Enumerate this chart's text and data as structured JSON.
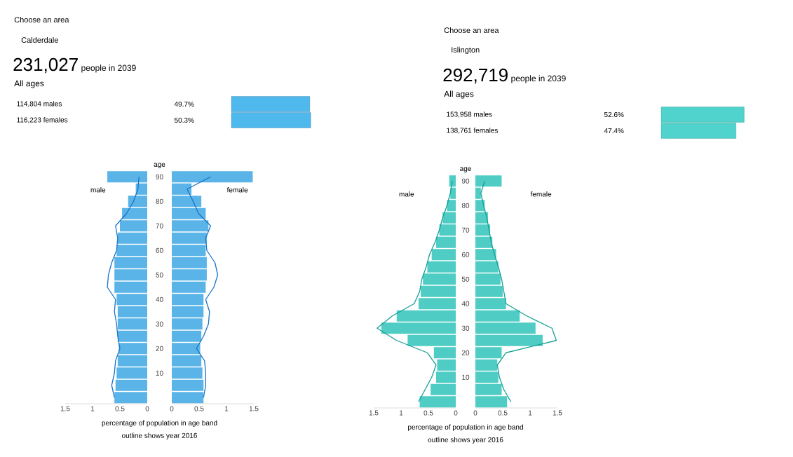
{
  "chart_data": [
    {
      "type": "bar",
      "orientation": "horizontal",
      "annotations": [
        "Choose an area",
        "Calderdale",
        "231,027",
        "people in 2039",
        "All ages"
      ],
      "categories": [
        "114,804 males",
        "116,223 females"
      ],
      "values": [
        49.7,
        50.3
      ],
      "value_labels": [
        "49.7%",
        "50.3%"
      ],
      "color": "#4fb8ec"
    },
    {
      "type": "bar",
      "orientation": "horizontal",
      "title": "male",
      "ylabel": "age",
      "xlabel": "percentage of population in age band",
      "annotations": [
        "outline shows year 2016"
      ],
      "x": [
        0,
        5,
        10,
        15,
        20,
        25,
        30,
        35,
        40,
        45,
        50,
        55,
        60,
        65,
        70,
        75,
        80,
        85,
        90
      ],
      "xlim": [
        1.5,
        0
      ],
      "xticks": [
        0,
        0.5,
        1,
        1.5
      ],
      "ylim": [
        -2.5,
        92.5
      ],
      "yticks": [
        10,
        20,
        30,
        40,
        50,
        60,
        70,
        80,
        90
      ],
      "series": [
        {
          "type": "bar",
          "color": "#5ab4e8",
          "values": [
            0.6,
            0.58,
            0.56,
            0.54,
            0.52,
            0.54,
            0.54,
            0.54,
            0.56,
            0.6,
            0.6,
            0.6,
            0.56,
            0.54,
            0.5,
            0.46,
            0.35,
            0.21,
            0.73
          ]
        },
        {
          "type": "line",
          "color": "#1a73c8",
          "values": [
            0.6,
            0.65,
            0.6,
            0.58,
            0.5,
            0.54,
            0.56,
            0.6,
            0.58,
            0.73,
            0.71,
            0.65,
            0.56,
            0.54,
            0.58,
            0.38,
            0.25,
            0.17,
            0.15
          ]
        }
      ]
    },
    {
      "type": "bar",
      "orientation": "horizontal",
      "title": "female",
      "tick_labels": "x",
      "x": [
        0,
        5,
        10,
        15,
        20,
        25,
        30,
        35,
        40,
        45,
        50,
        55,
        60,
        65,
        70,
        75,
        80,
        85,
        90
      ],
      "xlim": [
        0,
        1.5
      ],
      "xticks": [
        0,
        0.5,
        1,
        1.5
      ],
      "ylim": [
        -2.5,
        92.5
      ],
      "yticks": [
        10,
        20,
        30,
        40,
        50,
        60,
        70,
        80,
        90
      ],
      "series": [
        {
          "type": "bar",
          "color": "#5ab4e8",
          "values": [
            0.58,
            0.58,
            0.56,
            0.54,
            0.52,
            0.54,
            0.56,
            0.58,
            0.58,
            0.62,
            0.64,
            0.64,
            0.62,
            0.64,
            0.67,
            0.62,
            0.54,
            0.36,
            1.48
          ]
        },
        {
          "type": "line",
          "color": "#1a73c8",
          "values": [
            0.58,
            0.62,
            0.62,
            0.6,
            0.45,
            0.58,
            0.67,
            0.69,
            0.62,
            0.77,
            0.84,
            0.79,
            0.64,
            0.62,
            0.71,
            0.49,
            0.39,
            0.28,
            0.71
          ]
        }
      ]
    },
    {
      "type": "bar",
      "orientation": "horizontal",
      "annotations": [
        "Choose an area",
        "Islington",
        "292,719",
        "people in 2039",
        "All ages"
      ],
      "categories": [
        "153,958 males",
        "138,761 females"
      ],
      "values": [
        52.6,
        47.4
      ],
      "value_labels": [
        "52.6%",
        "47.4%"
      ],
      "color": "#4fd3cc"
    },
    {
      "type": "bar",
      "orientation": "horizontal",
      "title": "male",
      "ylabel": "age",
      "xlabel": "percentage of population in age band",
      "annotations": [
        "outline shows year 2016"
      ],
      "x": [
        0,
        5,
        10,
        15,
        20,
        25,
        30,
        35,
        40,
        45,
        50,
        55,
        60,
        65,
        70,
        75,
        80,
        85,
        90
      ],
      "xlim": [
        1.5,
        0
      ],
      "xticks": [
        0,
        0.5,
        1,
        1.5
      ],
      "ylim": [
        -2.5,
        92.5
      ],
      "yticks": [
        10,
        20,
        30,
        40,
        50,
        60,
        70,
        80,
        90
      ],
      "series": [
        {
          "type": "bar",
          "color": "#4fcdc5",
          "values": [
            0.66,
            0.46,
            0.36,
            0.34,
            0.4,
            0.88,
            1.36,
            1.08,
            0.68,
            0.64,
            0.6,
            0.52,
            0.44,
            0.36,
            0.3,
            0.24,
            0.16,
            0.1,
            0.12
          ]
        },
        {
          "type": "line",
          "color": "#15a096",
          "values": [
            0.68,
            0.56,
            0.44,
            0.36,
            0.52,
            1.08,
            1.44,
            1.16,
            0.76,
            0.66,
            0.62,
            0.54,
            0.48,
            0.38,
            0.3,
            0.24,
            0.16,
            0.1,
            0.06
          ]
        }
      ]
    },
    {
      "type": "bar",
      "orientation": "horizontal",
      "title": "female",
      "tick_labels": "x",
      "x": [
        0,
        5,
        10,
        15,
        20,
        25,
        30,
        35,
        40,
        45,
        50,
        55,
        60,
        65,
        70,
        75,
        80,
        85,
        90
      ],
      "xlim": [
        0,
        1.5
      ],
      "xticks": [
        0,
        0.5,
        1,
        1.5
      ],
      "ylim": [
        -2.5,
        92.5
      ],
      "yticks": [
        10,
        20,
        30,
        40,
        50,
        60,
        70,
        80,
        90
      ],
      "series": [
        {
          "type": "bar",
          "color": "#4fcdc5",
          "values": [
            0.58,
            0.48,
            0.42,
            0.4,
            0.48,
            1.23,
            1.1,
            0.81,
            0.56,
            0.5,
            0.46,
            0.42,
            0.38,
            0.31,
            0.27,
            0.23,
            0.17,
            0.1,
            0.48
          ]
        },
        {
          "type": "line",
          "color": "#15a096",
          "values": [
            0.65,
            0.52,
            0.44,
            0.4,
            0.56,
            1.48,
            1.4,
            0.94,
            0.56,
            0.52,
            0.48,
            0.42,
            0.35,
            0.29,
            0.25,
            0.21,
            0.15,
            0.1,
            0.17
          ]
        }
      ]
    }
  ]
}
